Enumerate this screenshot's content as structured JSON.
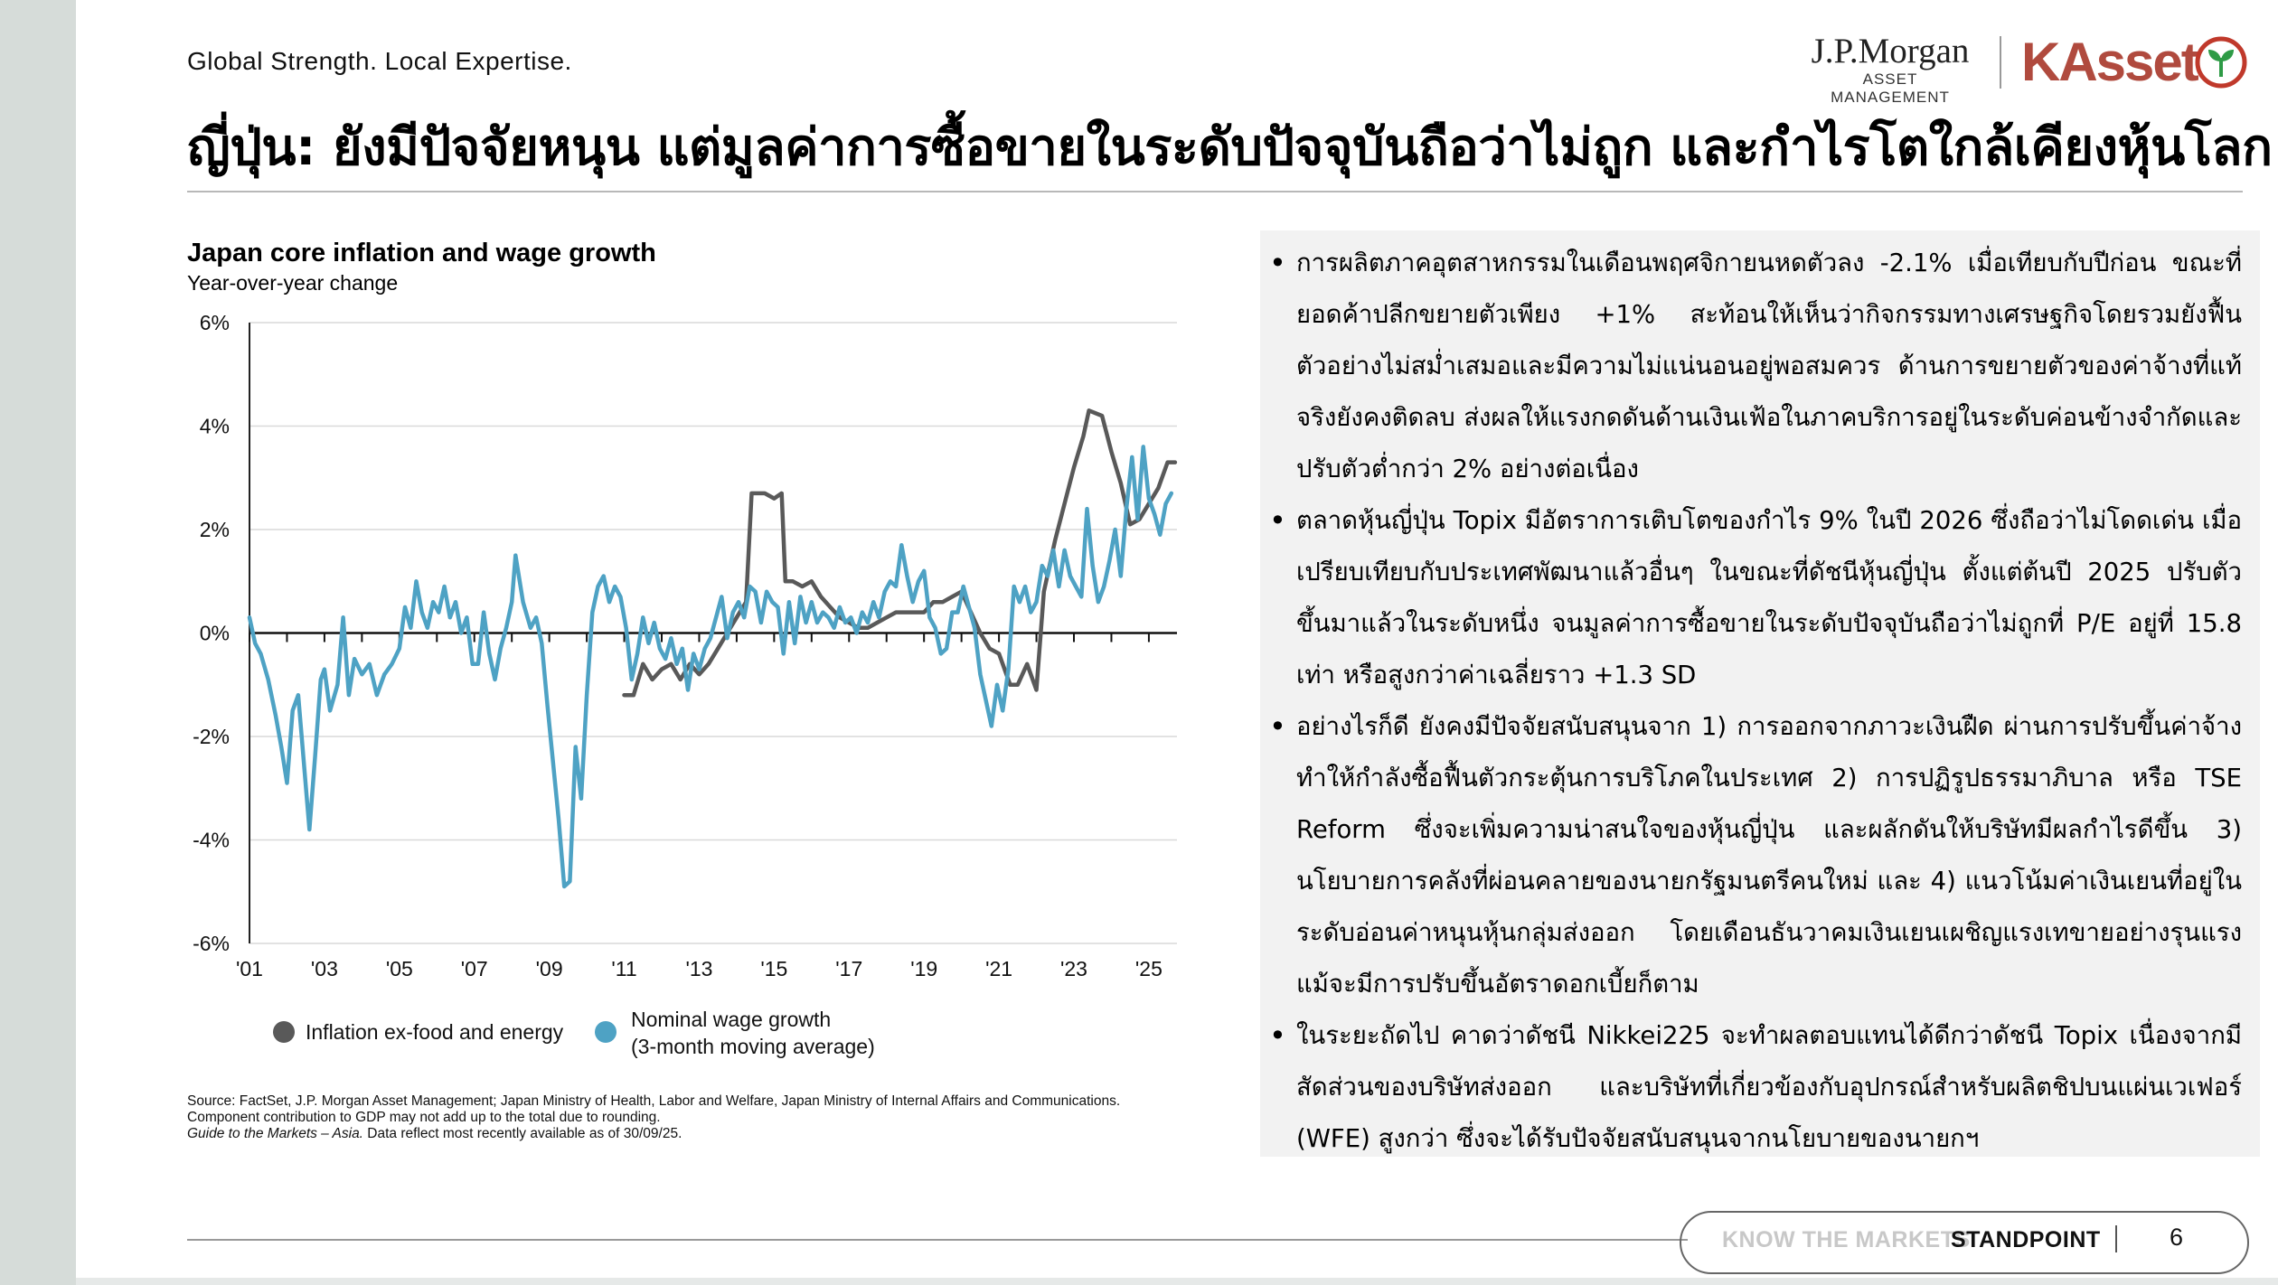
{
  "header": {
    "tagline": "Global Strength. Local Expertise.",
    "title": "ญี่ปุ่น: ยังมีปัจจัยหนุน แต่มูลค่าการซื้อขายในระดับปัจจุบันถือว่าไม่ถูก และกำไรโตใกล้เคียงหุ้นโลก"
  },
  "logos": {
    "jpm_name": "J.P.Morgan",
    "jpm_sub": "ASSET MANAGEMENT",
    "kasset": "KAsset"
  },
  "chart_data": {
    "type": "line",
    "title": "Japan core inflation and wage growth",
    "subtitle": "Year-over-year change",
    "x_tick_labels": [
      "'01",
      "'03",
      "'05",
      "'07",
      "'09",
      "'11",
      "'13",
      "'15",
      "'17",
      "'19",
      "'21",
      "'23",
      "'25"
    ],
    "x_ticks": [
      2001,
      2003,
      2005,
      2007,
      2009,
      2011,
      2013,
      2015,
      2017,
      2019,
      2021,
      2023,
      2025
    ],
    "xlim": [
      2001,
      2025.75
    ],
    "y_tick_labels": [
      "6%",
      "4%",
      "2%",
      "0%",
      "-2%",
      "-4%",
      "-6%"
    ],
    "y_ticks": [
      6,
      4,
      2,
      0,
      -2,
      -4,
      -6
    ],
    "ylim": [
      -6,
      6
    ],
    "grid": true,
    "legend_position": "bottom",
    "series": [
      {
        "name": "Inflation ex-food and energy",
        "color": "#595959",
        "points": [
          [
            2011.0,
            -1.2
          ],
          [
            2011.25,
            -1.2
          ],
          [
            2011.5,
            -0.6
          ],
          [
            2011.75,
            -0.9
          ],
          [
            2012.0,
            -0.7
          ],
          [
            2012.25,
            -0.6
          ],
          [
            2012.5,
            -0.9
          ],
          [
            2012.75,
            -0.6
          ],
          [
            2013.0,
            -0.8
          ],
          [
            2013.25,
            -0.6
          ],
          [
            2013.5,
            -0.3
          ],
          [
            2013.75,
            0.0
          ],
          [
            2014.0,
            0.3
          ],
          [
            2014.25,
            0.6
          ],
          [
            2014.4,
            2.7
          ],
          [
            2014.75,
            2.7
          ],
          [
            2015.0,
            2.6
          ],
          [
            2015.2,
            2.7
          ],
          [
            2015.3,
            1.0
          ],
          [
            2015.5,
            1.0
          ],
          [
            2015.75,
            0.9
          ],
          [
            2016.0,
            1.0
          ],
          [
            2016.25,
            0.7
          ],
          [
            2016.5,
            0.5
          ],
          [
            2016.75,
            0.3
          ],
          [
            2017.0,
            0.2
          ],
          [
            2017.25,
            0.1
          ],
          [
            2017.5,
            0.1
          ],
          [
            2017.75,
            0.2
          ],
          [
            2018.0,
            0.3
          ],
          [
            2018.25,
            0.4
          ],
          [
            2018.5,
            0.4
          ],
          [
            2018.75,
            0.4
          ],
          [
            2019.0,
            0.4
          ],
          [
            2019.25,
            0.6
          ],
          [
            2019.5,
            0.6
          ],
          [
            2019.75,
            0.7
          ],
          [
            2020.0,
            0.8
          ],
          [
            2020.25,
            0.4
          ],
          [
            2020.5,
            0.0
          ],
          [
            2020.75,
            -0.3
          ],
          [
            2021.0,
            -0.4
          ],
          [
            2021.3,
            -1.0
          ],
          [
            2021.5,
            -1.0
          ],
          [
            2021.75,
            -0.6
          ],
          [
            2022.0,
            -1.1
          ],
          [
            2022.2,
            0.8
          ],
          [
            2022.5,
            1.8
          ],
          [
            2022.75,
            2.5
          ],
          [
            2023.0,
            3.2
          ],
          [
            2023.25,
            3.8
          ],
          [
            2023.4,
            4.3
          ],
          [
            2023.75,
            4.2
          ],
          [
            2024.0,
            3.5
          ],
          [
            2024.25,
            2.9
          ],
          [
            2024.5,
            2.1
          ],
          [
            2024.75,
            2.2
          ],
          [
            2025.0,
            2.5
          ],
          [
            2025.25,
            2.8
          ],
          [
            2025.5,
            3.3
          ],
          [
            2025.7,
            3.3
          ]
        ]
      },
      {
        "name": "Nominal wage growth",
        "name_note": "(3-month moving average)",
        "color": "#4ea2c4",
        "points": [
          [
            2001.0,
            0.3
          ],
          [
            2001.15,
            -0.2
          ],
          [
            2001.3,
            -0.4
          ],
          [
            2001.5,
            -0.9
          ],
          [
            2001.7,
            -1.6
          ],
          [
            2001.85,
            -2.2
          ],
          [
            2002.0,
            -2.9
          ],
          [
            2002.15,
            -1.5
          ],
          [
            2002.3,
            -1.2
          ],
          [
            2002.45,
            -2.5
          ],
          [
            2002.6,
            -3.8
          ],
          [
            2002.75,
            -2.4
          ],
          [
            2002.9,
            -0.9
          ],
          [
            2003.0,
            -0.7
          ],
          [
            2003.15,
            -1.5
          ],
          [
            2003.35,
            -1.0
          ],
          [
            2003.5,
            0.3
          ],
          [
            2003.65,
            -1.2
          ],
          [
            2003.8,
            -0.5
          ],
          [
            2004.0,
            -0.8
          ],
          [
            2004.2,
            -0.6
          ],
          [
            2004.4,
            -1.2
          ],
          [
            2004.6,
            -0.8
          ],
          [
            2004.8,
            -0.6
          ],
          [
            2005.0,
            -0.3
          ],
          [
            2005.15,
            0.5
          ],
          [
            2005.3,
            0.1
          ],
          [
            2005.45,
            1.0
          ],
          [
            2005.6,
            0.4
          ],
          [
            2005.75,
            0.1
          ],
          [
            2005.9,
            0.6
          ],
          [
            2006.05,
            0.4
          ],
          [
            2006.2,
            0.9
          ],
          [
            2006.35,
            0.3
          ],
          [
            2006.5,
            0.6
          ],
          [
            2006.65,
            0.0
          ],
          [
            2006.8,
            0.3
          ],
          [
            2006.95,
            -0.6
          ],
          [
            2007.1,
            -0.6
          ],
          [
            2007.25,
            0.4
          ],
          [
            2007.4,
            -0.4
          ],
          [
            2007.55,
            -0.9
          ],
          [
            2007.7,
            -0.3
          ],
          [
            2007.85,
            0.1
          ],
          [
            2008.0,
            0.6
          ],
          [
            2008.1,
            1.5
          ],
          [
            2008.3,
            0.6
          ],
          [
            2008.5,
            0.1
          ],
          [
            2008.65,
            0.3
          ],
          [
            2008.8,
            -0.2
          ],
          [
            2008.95,
            -1.4
          ],
          [
            2009.1,
            -2.5
          ],
          [
            2009.25,
            -3.6
          ],
          [
            2009.4,
            -4.9
          ],
          [
            2009.55,
            -4.8
          ],
          [
            2009.7,
            -2.2
          ],
          [
            2009.85,
            -3.2
          ],
          [
            2010.0,
            -1.2
          ],
          [
            2010.15,
            0.4
          ],
          [
            2010.3,
            0.9
          ],
          [
            2010.45,
            1.1
          ],
          [
            2010.6,
            0.6
          ],
          [
            2010.75,
            0.9
          ],
          [
            2010.9,
            0.7
          ],
          [
            2011.05,
            0.1
          ],
          [
            2011.2,
            -0.9
          ],
          [
            2011.35,
            -0.4
          ],
          [
            2011.5,
            0.3
          ],
          [
            2011.65,
            -0.2
          ],
          [
            2011.8,
            0.2
          ],
          [
            2011.95,
            -0.3
          ],
          [
            2012.1,
            -0.5
          ],
          [
            2012.25,
            -0.1
          ],
          [
            2012.4,
            -0.6
          ],
          [
            2012.55,
            -0.3
          ],
          [
            2012.7,
            -1.1
          ],
          [
            2012.85,
            -0.4
          ],
          [
            2013.0,
            -0.7
          ],
          [
            2013.15,
            -0.3
          ],
          [
            2013.3,
            -0.1
          ],
          [
            2013.45,
            0.3
          ],
          [
            2013.6,
            0.7
          ],
          [
            2013.75,
            -0.1
          ],
          [
            2013.9,
            0.4
          ],
          [
            2014.05,
            0.6
          ],
          [
            2014.2,
            0.3
          ],
          [
            2014.35,
            0.9
          ],
          [
            2014.5,
            0.8
          ],
          [
            2014.65,
            0.2
          ],
          [
            2014.8,
            0.8
          ],
          [
            2014.95,
            0.6
          ],
          [
            2015.1,
            0.5
          ],
          [
            2015.25,
            -0.4
          ],
          [
            2015.4,
            0.6
          ],
          [
            2015.55,
            -0.2
          ],
          [
            2015.7,
            0.7
          ],
          [
            2015.85,
            0.2
          ],
          [
            2016.0,
            0.6
          ],
          [
            2016.15,
            0.2
          ],
          [
            2016.3,
            0.4
          ],
          [
            2016.45,
            0.3
          ],
          [
            2016.6,
            0.1
          ],
          [
            2016.75,
            0.5
          ],
          [
            2016.9,
            0.2
          ],
          [
            2017.05,
            0.3
          ],
          [
            2017.2,
            0.0
          ],
          [
            2017.35,
            0.4
          ],
          [
            2017.5,
            0.2
          ],
          [
            2017.65,
            0.6
          ],
          [
            2017.8,
            0.3
          ],
          [
            2017.95,
            0.8
          ],
          [
            2018.1,
            1.0
          ],
          [
            2018.25,
            0.9
          ],
          [
            2018.4,
            1.7
          ],
          [
            2018.55,
            1.1
          ],
          [
            2018.7,
            0.6
          ],
          [
            2018.85,
            1.0
          ],
          [
            2019.0,
            1.2
          ],
          [
            2019.15,
            0.3
          ],
          [
            2019.3,
            0.1
          ],
          [
            2019.45,
            -0.4
          ],
          [
            2019.6,
            -0.3
          ],
          [
            2019.75,
            0.4
          ],
          [
            2019.9,
            0.4
          ],
          [
            2020.05,
            0.9
          ],
          [
            2020.2,
            0.5
          ],
          [
            2020.35,
            0.1
          ],
          [
            2020.5,
            -0.8
          ],
          [
            2020.65,
            -1.3
          ],
          [
            2020.8,
            -1.8
          ],
          [
            2020.95,
            -1.0
          ],
          [
            2021.1,
            -1.5
          ],
          [
            2021.25,
            -0.7
          ],
          [
            2021.4,
            0.9
          ],
          [
            2021.55,
            0.6
          ],
          [
            2021.7,
            0.9
          ],
          [
            2021.85,
            0.4
          ],
          [
            2022.0,
            0.6
          ],
          [
            2022.15,
            1.3
          ],
          [
            2022.3,
            1.1
          ],
          [
            2022.45,
            1.6
          ],
          [
            2022.6,
            0.9
          ],
          [
            2022.75,
            1.6
          ],
          [
            2022.9,
            1.1
          ],
          [
            2023.05,
            0.9
          ],
          [
            2023.2,
            0.7
          ],
          [
            2023.35,
            2.4
          ],
          [
            2023.5,
            1.3
          ],
          [
            2023.65,
            0.6
          ],
          [
            2023.8,
            0.9
          ],
          [
            2023.95,
            1.4
          ],
          [
            2024.1,
            2.0
          ],
          [
            2024.25,
            1.1
          ],
          [
            2024.4,
            2.4
          ],
          [
            2024.55,
            3.4
          ],
          [
            2024.7,
            2.2
          ],
          [
            2024.85,
            3.6
          ],
          [
            2025.0,
            2.6
          ],
          [
            2025.15,
            2.3
          ],
          [
            2025.3,
            1.9
          ],
          [
            2025.45,
            2.5
          ],
          [
            2025.6,
            2.7
          ]
        ]
      }
    ]
  },
  "source": {
    "line1": "Source: FactSet, J.P. Morgan Asset Management; Japan Ministry of Health, Labor and Welfare, Japan Ministry of Internal Affairs and Communications.",
    "line2": "Component contribution to GDP may not add up to the total due to rounding.",
    "line3_italic": "Guide to the Markets – Asia.",
    "line3_rest": " Data reflect most recently available as of 30/09/25."
  },
  "bullets": [
    "การผลิตภาคอุตสาหกรรมในเดือนพฤศจิกายนหดตัวลง -2.1% เมื่อเทียบกับปีก่อน ขณะที่ยอดค้าปลีกขยายตัวเพียง +1% สะท้อนให้เห็นว่ากิจกรรมทางเศรษฐกิจโดยรวมยังฟื้นตัวอย่างไม่สม่ำเสมอและมีความไม่แน่นอนอยู่พอสมควร ด้านการขยายตัวของค่าจ้างที่แท้จริงยังคงติดลบ ส่งผลให้แรงกดดันด้านเงินเฟ้อในภาคบริการอยู่ในระดับค่อนข้างจำกัดและปรับตัวต่ำกว่า 2% อย่างต่อเนื่อง",
    "ตลาดหุ้นญี่ปุ่น Topix มีอัตราการเติบโตของกำไร 9% ในปี 2026 ซึ่งถือว่าไม่โดดเด่น เมื่อเปรียบเทียบกับประเทศพัฒนาแล้วอื่นๆ ในขณะที่ดัชนีหุ้นญี่ปุ่น ตั้งแต่ต้นปี 2025 ปรับตัวขึ้นมาแล้วในระดับหนึ่ง จนมูลค่าการซื้อขายในระดับปัจจุบันถือว่าไม่ถูกที่ P/E อยู่ที่ 15.8 เท่า หรือสูงกว่าค่าเฉลี่ยราว +1.3 SD",
    "อย่างไรก็ดี ยังคงมีปัจจัยสนับสนุนจาก 1) การออกจากภาวะเงินฝืด ผ่านการปรับขึ้นค่าจ้าง ทำให้กำลังซื้อฟื้นตัวกระตุ้นการบริโภคในประเทศ 2) การปฏิรูปธรรมาภิบาล หรือ TSE Reform ซึ่งจะเพิ่มความน่าสนใจของหุ้นญี่ปุ่น และผลักดันให้บริษัทมีผลกำไรดีขึ้น 3) นโยบายการคลังที่ผ่อนคลายของนายกรัฐมนตรีคนใหม่ และ 4) แนวโน้มค่าเงินเยนที่อยู่ในระดับอ่อนค่าหนุนหุ้นกลุ่มส่งออก โดยเดือนธันวาคมเงินเยนเผชิญแรงเทขายอย่างรุนแรงแม้จะมีการปรับขึ้นอัตราดอกเบี้ยก็ตาม",
    "ในระยะถัดไป คาดว่าดัชนี Nikkei225 จะทำผลตอบแทนได้ดีกว่าดัชนี Topix เนื่องจากมีสัดส่วนของบริษัทส่งออก และบริษัทที่เกี่ยวข้องกับอุปกรณ์สำหรับผลิตชิปบนแผ่นเวเฟอร์ (WFE) สูงกว่า ซึ่งจะได้รับปัจจัยสนับสนุนจากนโยบายของนายกฯ"
  ],
  "footer": {
    "know": "KNOW THE MARKETS",
    "standpoint": "STANDPOINT",
    "page": "6"
  }
}
